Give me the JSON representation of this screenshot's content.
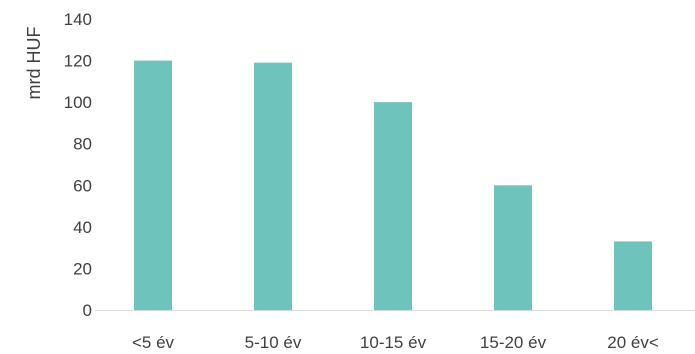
{
  "chart_data": {
    "type": "bar",
    "title": "",
    "xlabel": "",
    "ylabel": "mrd HUF",
    "categories": [
      "<5 év",
      "5-10 év",
      "10-15 év",
      "15-20 év",
      "20 év<"
    ],
    "values": [
      120,
      119,
      100,
      60,
      33
    ],
    "ylim": [
      0,
      140
    ],
    "yticks": [
      0,
      20,
      40,
      60,
      80,
      100,
      120,
      140
    ],
    "grid": false,
    "legend": "none",
    "colors": {
      "bar": "#6fc3bd",
      "axis": "#d9d9d9",
      "text": "#3f3f3f"
    }
  }
}
